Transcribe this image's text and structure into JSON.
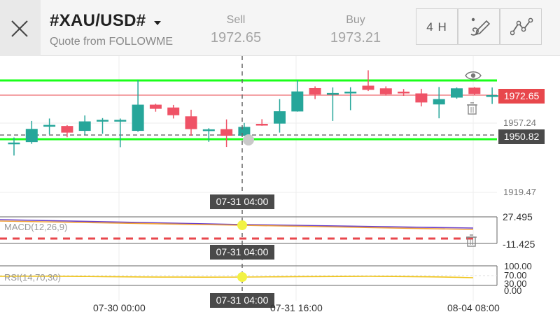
{
  "header": {
    "symbol": "#XAU/USD#",
    "quote_source": "Quote from FOLLOWME",
    "sell_label": "Sell",
    "sell_price": "1972.65",
    "buy_label": "Buy",
    "buy_price": "1973.21",
    "timeframe": "4 H"
  },
  "icons": {
    "close": "close-icon",
    "caret": "chevron-down-icon",
    "draw": "drawing-pen-icon",
    "indicator": "indicator-line-icon",
    "eye": "eye-icon",
    "trash": "trash-icon"
  },
  "price_axis": {
    "sell_tag": "1972.65",
    "level_1": "1957.24",
    "line_tag": "1950.82",
    "level_2": "1919.47"
  },
  "crosshair": {
    "time_main": "07-31 04:00",
    "time_macd": "07-31 04:00",
    "time_rsi": "07-31 04:00"
  },
  "macd": {
    "label": "MACD(12,26,9)",
    "top": "27.495",
    "bottom": "-11.425"
  },
  "rsi": {
    "label": "RSI(14,70,30)",
    "level_100": "100.00",
    "level_70": "70.00",
    "level_30": "30.00",
    "level_0": "0.00"
  },
  "x_axis": {
    "t1": "07-30 00:00",
    "t2": "07-31 16:00",
    "t3": "08-04 08:00"
  },
  "colors": {
    "bull": "#26a69a",
    "bear": "#ef5266",
    "green_line": "#1aff1a",
    "sell_tag": "#e8474c",
    "dark_tag": "#4a4a4a",
    "macd_fast": "#6a3fc9",
    "macd_slow": "#f2a33a",
    "rsi_line": "#f0c419"
  },
  "chart_data": {
    "type": "candlestick",
    "timeframe": "4 H",
    "x_labels": [
      "07-30 00:00",
      "07-31 16:00",
      "08-04 08:00"
    ],
    "y_labels": [
      "1972.65",
      "1957.24",
      "1950.82",
      "1919.47"
    ],
    "candles": [
      {
        "o": 1947.4,
        "h": 1949.7,
        "l": 1941.5,
        "c": 1947.4
      },
      {
        "o": 1947.6,
        "h": 1957.2,
        "l": 1946.8,
        "c": 1953.6
      },
      {
        "o": 1955.4,
        "h": 1958.3,
        "l": 1951.1,
        "c": 1955.4
      },
      {
        "o": 1954.9,
        "h": 1955.3,
        "l": 1949.8,
        "c": 1951.9
      },
      {
        "o": 1952.7,
        "h": 1959.7,
        "l": 1950.9,
        "c": 1957.0
      },
      {
        "o": 1957.7,
        "h": 1958.5,
        "l": 1951.4,
        "c": 1957.7
      },
      {
        "o": 1957.7,
        "h": 1958.3,
        "l": 1945.3,
        "c": 1957.7
      },
      {
        "o": 1952.7,
        "h": 1975.8,
        "l": 1952.3,
        "c": 1964.6
      },
      {
        "o": 1964.6,
        "h": 1965.0,
        "l": 1961.4,
        "c": 1962.7
      },
      {
        "o": 1963.3,
        "h": 1964.5,
        "l": 1958.3,
        "c": 1959.8
      },
      {
        "o": 1959.3,
        "h": 1962.3,
        "l": 1950.5,
        "c": 1953.5
      },
      {
        "o": 1953.4,
        "h": 1953.9,
        "l": 1947.7,
        "c": 1953.4
      },
      {
        "o": 1953.5,
        "h": 1957.9,
        "l": 1945.4,
        "c": 1950.5
      },
      {
        "o": 1950.5,
        "h": 1956.3,
        "l": 1950.5,
        "c": 1954.5
      },
      {
        "o": 1955.9,
        "h": 1958.0,
        "l": 1955.0,
        "c": 1955.4
      },
      {
        "o": 1956.0,
        "h": 1967.1,
        "l": 1951.9,
        "c": 1961.6
      },
      {
        "o": 1961.5,
        "h": 1975.8,
        "l": 1961.4,
        "c": 1970.6
      },
      {
        "o": 1972.1,
        "h": 1972.9,
        "l": 1967.1,
        "c": 1969.2
      },
      {
        "o": 1969.9,
        "h": 1972.4,
        "l": 1957.2,
        "c": 1969.9
      },
      {
        "o": 1969.9,
        "h": 1972.5,
        "l": 1962.1,
        "c": 1970.5
      },
      {
        "o": 1973.2,
        "h": 1980.2,
        "l": 1970.8,
        "c": 1971.3
      },
      {
        "o": 1972.0,
        "h": 1972.9,
        "l": 1968.7,
        "c": 1969.3
      },
      {
        "o": 1970.5,
        "h": 1971.7,
        "l": 1968.6,
        "c": 1970.1
      },
      {
        "o": 1969.7,
        "h": 1971.8,
        "l": 1963.8,
        "c": 1965.6
      },
      {
        "o": 1964.7,
        "h": 1972.6,
        "l": 1958.4,
        "c": 1967.1
      },
      {
        "o": 1967.8,
        "h": 1972.4,
        "l": 1967.3,
        "c": 1972.0
      },
      {
        "o": 1972.3,
        "h": 1972.6,
        "l": 1968.8,
        "c": 1969.4
      },
      {
        "o": 1968.9,
        "h": 1972.4,
        "l": 1964.9,
        "c": 1968.9
      }
    ],
    "lines": [
      {
        "name": "upper",
        "value": 1975.0
      },
      {
        "name": "bid",
        "value": 1972.65
      },
      {
        "name": "mid",
        "value": 1950.82
      },
      {
        "name": "lower",
        "value": 1949.6
      }
    ],
    "ylim": [
      1919.47,
      1985.0
    ]
  }
}
